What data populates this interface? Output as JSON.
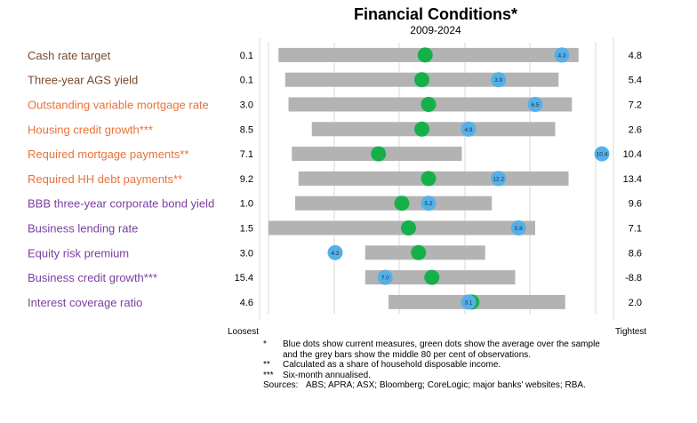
{
  "header": {
    "title": "Financial Conditions*",
    "subtitle": "2009-2024"
  },
  "axis": {
    "left_end_label": "Loosest",
    "right_end_label": "Tightest"
  },
  "colors": {
    "group_1": "#7a4a2a",
    "group_2": "#e8733a",
    "group_3": "#7b3fa0",
    "bar": "#b3b3b3",
    "average_dot": "#16b04a",
    "current_dot": "#55b0e8"
  },
  "chart_data": {
    "type": "range_dot",
    "title": "Financial Conditions*",
    "subtitle": "2009-2024",
    "x_scale": "normalised, loosest (0) to tightest (1)",
    "rows": [
      {
        "label": "Cash rate target",
        "group": 1,
        "loose_value": "0.1",
        "tight_value": "4.8",
        "current": "4.3",
        "bar_start": 0.03,
        "bar_end": 0.93,
        "average": 0.47,
        "current_pos": 0.88
      },
      {
        "label": "Three-year AGS yield",
        "group": 1,
        "loose_value": "0.1",
        "tight_value": "5.4",
        "current": "3.9",
        "bar_start": 0.05,
        "bar_end": 0.87,
        "average": 0.46,
        "current_pos": 0.69
      },
      {
        "label": "Outstanding variable mortgage rate",
        "group": 2,
        "loose_value": "3.0",
        "tight_value": "7.2",
        "current": "6.5",
        "bar_start": 0.06,
        "bar_end": 0.91,
        "average": 0.48,
        "current_pos": 0.8
      },
      {
        "label": "Housing credit growth***",
        "group": 2,
        "loose_value": "8.5",
        "tight_value": "2.6",
        "current": "4.9",
        "bar_start": 0.13,
        "bar_end": 0.86,
        "average": 0.46,
        "current_pos": 0.6
      },
      {
        "label": "Required mortgage payments**",
        "group": 2,
        "loose_value": "7.1",
        "tight_value": "10.4",
        "current": "10.4",
        "bar_start": 0.07,
        "bar_end": 0.58,
        "average": 0.33,
        "current_pos": 1.0
      },
      {
        "label": "Required HH debt payments**",
        "group": 2,
        "loose_value": "9.2",
        "tight_value": "13.4",
        "current": "12.2",
        "bar_start": 0.09,
        "bar_end": 0.9,
        "average": 0.48,
        "current_pos": 0.69
      },
      {
        "label": "BBB three-year corporate bond yield",
        "group": 3,
        "loose_value": "1.0",
        "tight_value": "9.6",
        "current": "5.2",
        "bar_start": 0.08,
        "bar_end": 0.67,
        "average": 0.4,
        "current_pos": 0.48
      },
      {
        "label": "Business lending rate",
        "group": 3,
        "loose_value": "1.5",
        "tight_value": "7.1",
        "current": "5.8",
        "bar_start": 0.0,
        "bar_end": 0.8,
        "average": 0.42,
        "current_pos": 0.75
      },
      {
        "label": "Equity risk premium",
        "group": 3,
        "loose_value": "3.0",
        "tight_value": "8.6",
        "current": "4.2",
        "bar_start": 0.29,
        "bar_end": 0.65,
        "average": 0.45,
        "current_pos": 0.2
      },
      {
        "label": "Business credit growth***",
        "group": 3,
        "loose_value": "15.4",
        "tight_value": "-8.8",
        "current": "7.0",
        "bar_start": 0.29,
        "bar_end": 0.74,
        "average": 0.49,
        "current_pos": 0.35
      },
      {
        "label": "Interest coverage ratio",
        "group": 3,
        "loose_value": "4.6",
        "tight_value": "2.0",
        "current": "3.1",
        "bar_start": 0.36,
        "bar_end": 0.89,
        "average": 0.61,
        "current_pos": 0.6
      }
    ]
  },
  "notes": [
    {
      "marker": "*",
      "text": "Blue dots show current measures, green dots show the average over the sample and the grey bars show the middle 80 per cent of observations."
    },
    {
      "marker": "**",
      "text": "Calculated as a share of household disposable income."
    },
    {
      "marker": "***",
      "text": "Six-month annualised."
    },
    {
      "marker": "Sources:",
      "text": "ABS; APRA; ASX; Bloomberg; CoreLogic; major banks' websites; RBA."
    }
  ]
}
